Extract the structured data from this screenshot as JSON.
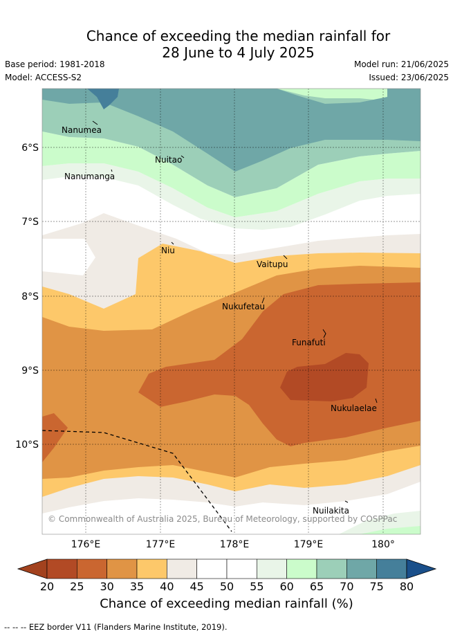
{
  "title": {
    "line1": "Chance of exceeding the median rainfall for",
    "line2": "28 June to 4 July 2025"
  },
  "meta": {
    "base_period": "Base period: 1981-2018",
    "model": "Model: ACCESS-S2",
    "model_run": "Model run: 21/06/2025",
    "issued": "Issued: 23/06/2025"
  },
  "map": {
    "lat_labels": [
      "6°S",
      "7°S",
      "8°S",
      "9°S",
      "10°S"
    ],
    "lon_labels": [
      "176°E",
      "177°E",
      "178°E",
      "179°E",
      "180°"
    ],
    "places": [
      "Nanumea",
      "Nuitao",
      "Nanumanga",
      "Niu",
      "Vaitupu",
      "Nukufetau",
      "Funafuti",
      "Nukulaelae",
      "Nuilakita"
    ],
    "copyright": "© Commonwealth of Australia 2025, Bureau of Meteorology, supported by COSPPac"
  },
  "colorbar": {
    "ticks": [
      "20",
      "25",
      "30",
      "35",
      "40",
      "45",
      "50",
      "55",
      "60",
      "65",
      "70",
      "75",
      "80"
    ],
    "colors": [
      "#a3421e",
      "#b24a25",
      "#ca6630",
      "#e09445",
      "#fdc86a",
      "#f0ebe5",
      "#ffffff",
      "#ffffff",
      "#e9f5e8",
      "#cbfccb",
      "#9ccfb8",
      "#6fa7a7",
      "#457f9a",
      "#1a4f8a"
    ],
    "title": "Chance of exceeding median rainfall (%)"
  },
  "footnote": "--  --  -- EEZ border V11 (Flanders Marine Institute, 2019)."
}
